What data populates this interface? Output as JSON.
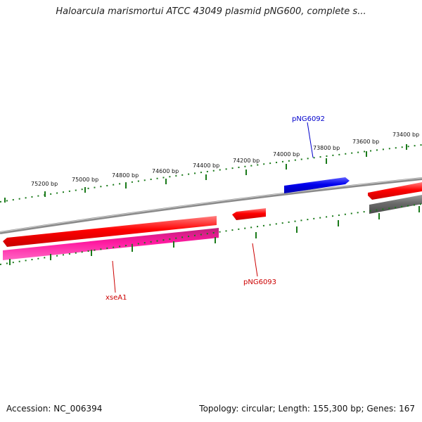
{
  "header": {
    "title": "Haloarcula marismortui ATCC 43049 plasmid pNG600, complete s..."
  },
  "footer": {
    "accession": "Accession: NC_006394",
    "summary": "Topology: circular; Length: 155,300 bp; Genes: 167"
  },
  "map": {
    "ruler_labels": [
      "75200 bp",
      "75000 bp",
      "74800 bp",
      "74600 bp",
      "74400 bp",
      "74200 bp",
      "74000 bp",
      "73800 bp",
      "73600 bp",
      "73400 bp"
    ],
    "gene_labels": {
      "pNG6092": "pNG6092",
      "pNG6093": "pNG6093",
      "xseA1": "xseA1"
    },
    "colors": {
      "backbone": "#8a8a8a",
      "ruler": "#1a7a1a",
      "gene_red": "#ff0000",
      "gene_blue": "#0000ee",
      "gene_magenta": "#ee1493",
      "gene_gray": "#6e6e6e",
      "label_blue": "#0000cc",
      "label_red": "#cc0000"
    }
  }
}
